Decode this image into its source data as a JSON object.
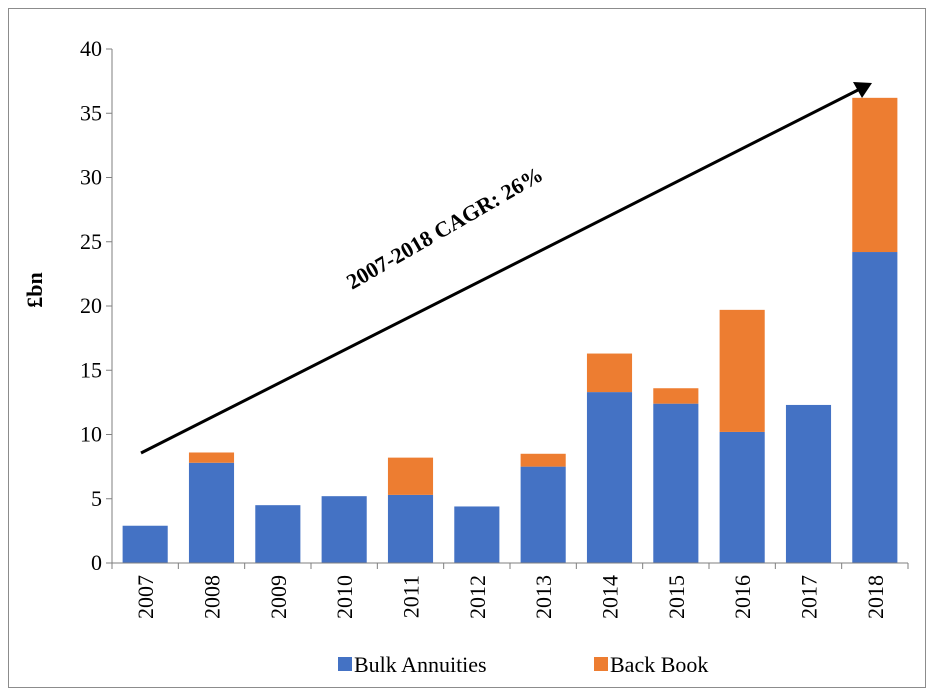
{
  "chart_data": {
    "type": "bar",
    "stacked": true,
    "categories": [
      "2007",
      "2008",
      "2009",
      "2010",
      "2011",
      "2012",
      "2013",
      "2014",
      "2015",
      "2016",
      "2017",
      "2018"
    ],
    "series": [
      {
        "name": "Bulk Annuities",
        "color": "#4472c4",
        "values": [
          2.9,
          7.8,
          4.5,
          5.2,
          5.3,
          4.4,
          7.5,
          13.3,
          12.4,
          10.2,
          12.3,
          24.2
        ]
      },
      {
        "name": "Back Book",
        "color": "#ed7d31",
        "values": [
          0,
          0.8,
          0,
          0,
          2.9,
          0,
          1.0,
          3.0,
          1.2,
          9.5,
          0,
          12.0
        ]
      }
    ],
    "ylabel": "£bn",
    "ylim": [
      0,
      40
    ],
    "yticks": [
      0,
      5,
      10,
      15,
      20,
      25,
      30,
      35,
      40
    ],
    "grid": false,
    "legend_position": "bottom",
    "annotation": "2007-2018 CAGR: 26%"
  }
}
